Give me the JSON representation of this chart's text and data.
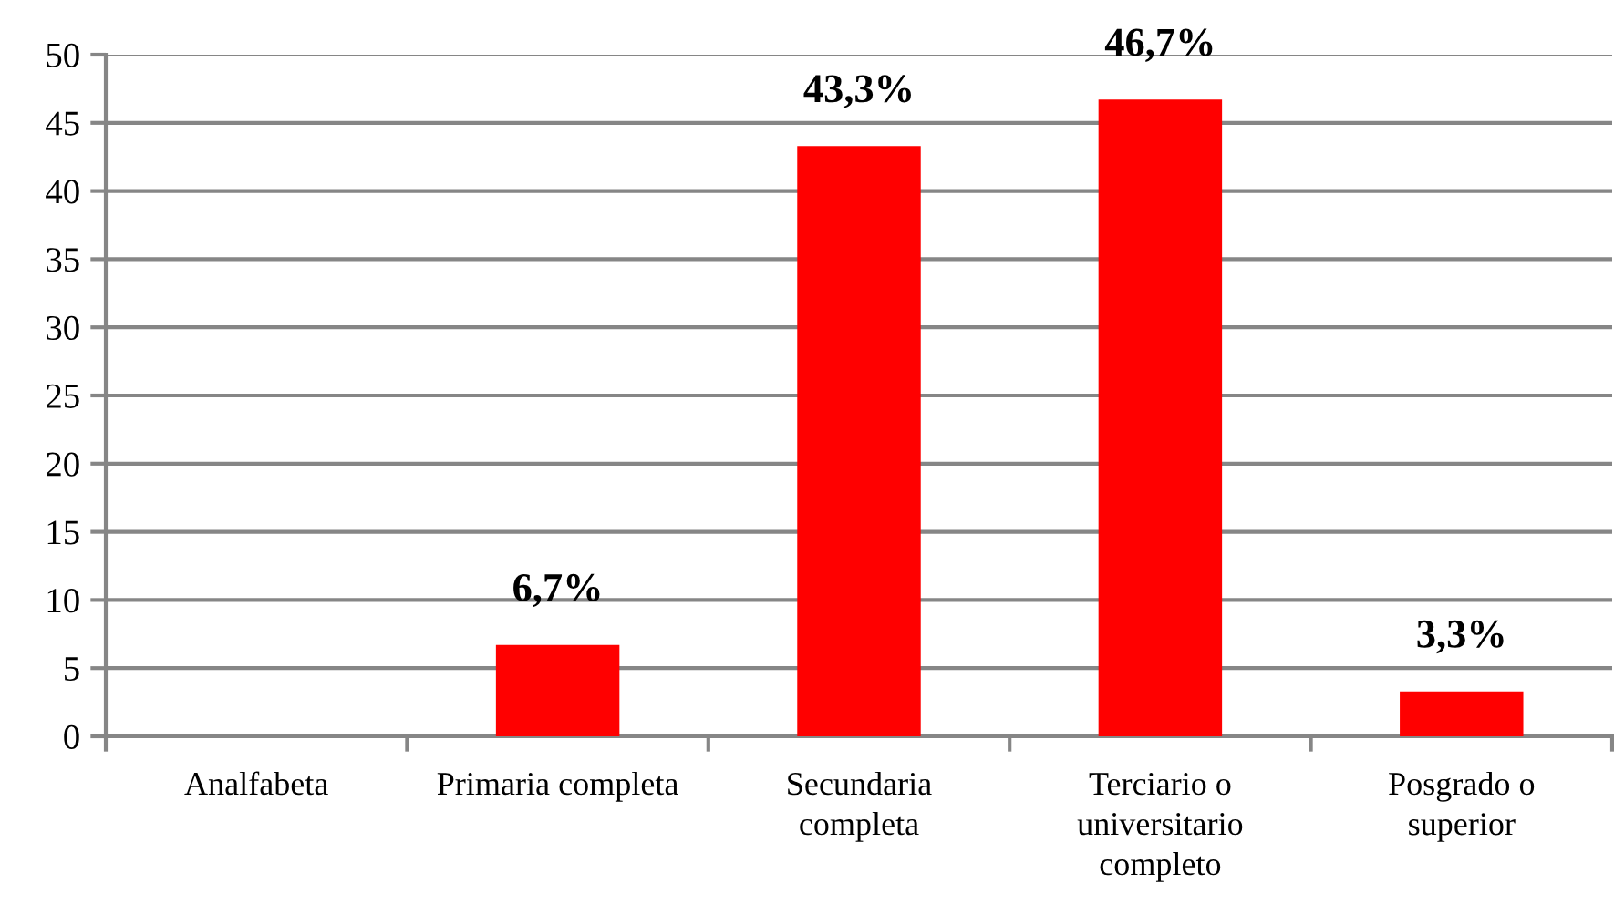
{
  "chart_data": {
    "type": "bar",
    "categories": [
      "Analfabeta",
      "Primaria completa",
      "Secundaria\ncompleta",
      "Terciario o\nuniversitario\ncompleto",
      "Posgrado o\nsuperior"
    ],
    "values": [
      0,
      6.7,
      43.3,
      46.7,
      3.3
    ],
    "color": "#ff0000",
    "value_labels": [
      null,
      "6,7%",
      "43,3%",
      "46,7%",
      "3,3%"
    ],
    "ylim": [
      0,
      50
    ],
    "yticks": [
      0,
      5,
      10,
      15,
      20,
      25,
      30,
      35,
      40,
      45,
      50
    ],
    "grid": "y"
  }
}
